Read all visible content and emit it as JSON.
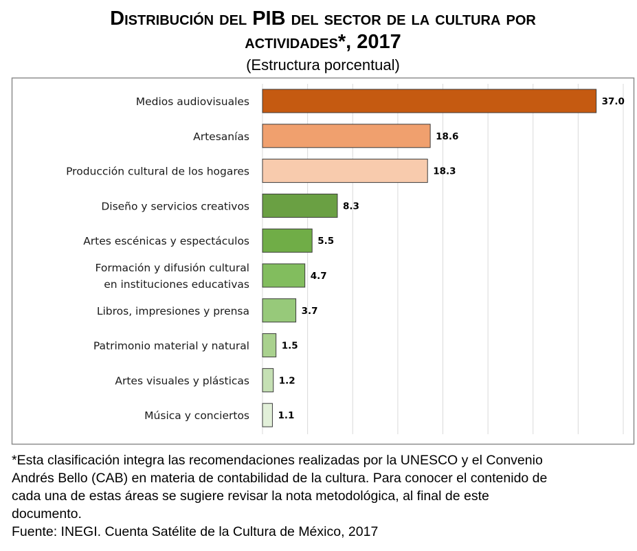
{
  "chart_data": {
    "type": "bar",
    "orientation": "horizontal",
    "title_line1": "Distribución del PIB del sector de la cultura por",
    "title_line2": "actividades*, 2017",
    "subtitle": "(Estructura porcentual)",
    "categories": [
      [
        "Medios audiovisuales"
      ],
      [
        "Artesanías"
      ],
      [
        "Producción cultural de los hogares"
      ],
      [
        "Diseño y servicios creativos"
      ],
      [
        "Artes escénicas y espectáculos"
      ],
      [
        "Formación y difusión cultural",
        "en instituciones educativas"
      ],
      [
        "Libros, impresiones y prensa"
      ],
      [
        "Patrimonio material y natural"
      ],
      [
        "Artes visuales y plásticas"
      ],
      [
        "Música y conciertos"
      ]
    ],
    "values": [
      37.0,
      18.6,
      18.3,
      8.3,
      5.5,
      4.7,
      3.7,
      1.5,
      1.2,
      1.1
    ],
    "data_labels": [
      "37.0",
      "18.6",
      "18.3",
      "8.3",
      "5.5",
      "4.7",
      "3.7",
      "1.5",
      "1.2",
      "1.1"
    ],
    "colors": [
      "#C55A11",
      "#F0A06E",
      "#F8CBAD",
      "#6AA043",
      "#70AD47",
      "#82BD5E",
      "#97C97A",
      "#A9D18E",
      "#C5E0B4",
      "#E2F0D9"
    ],
    "xlim": [
      0,
      40
    ],
    "grid_step": 5,
    "grid": true,
    "legend": "none"
  },
  "footnote": {
    "lines": [
      "*Esta clasificación integra las recomendaciones realizadas por la UNESCO y el Convenio",
      "Andrés Bello (CAB) en materia de contabilidad de la cultura. Para conocer el contenido de",
      "cada una de estas áreas se sugiere revisar la nota metodológica, al final de este",
      "documento."
    ],
    "source": "Fuente: INEGI. Cuenta Satélite de la Cultura de México, 2017"
  }
}
